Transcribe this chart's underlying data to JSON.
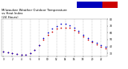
{
  "title": "Milwaukee Weather Outdoor Temperature\nvs Heat Index\n(24 Hours)",
  "title_fontsize": 2.8,
  "background_color": "#ffffff",
  "plot_bg_color": "#ffffff",
  "grid_color": "#888888",
  "x_hours": [
    0,
    1,
    2,
    3,
    4,
    5,
    6,
    7,
    8,
    9,
    10,
    11,
    12,
    13,
    14,
    15,
    16,
    17,
    18,
    19,
    20,
    21,
    22,
    23
  ],
  "temp": [
    32,
    31,
    30,
    29,
    28,
    28,
    30,
    35,
    42,
    50,
    57,
    62,
    66,
    68,
    68,
    67,
    64,
    60,
    55,
    50,
    46,
    43,
    40,
    37
  ],
  "heat_index": [
    32,
    31,
    30,
    29,
    28,
    28,
    30,
    35,
    42,
    52,
    60,
    66,
    70,
    73,
    73,
    71,
    67,
    63,
    57,
    52,
    48,
    45,
    42,
    39
  ],
  "temp_color": "#cc0000",
  "heat_color": "#0000cc",
  "dot_size": 1.5,
  "ylim": [
    25,
    80
  ],
  "yticks": [
    30,
    40,
    50,
    60,
    70,
    80
  ],
  "ytick_labels": [
    "30",
    "40",
    "50",
    "60",
    "70",
    "80"
  ],
  "legend_temp_color": "#cc0000",
  "legend_heat_color": "#0000bb"
}
